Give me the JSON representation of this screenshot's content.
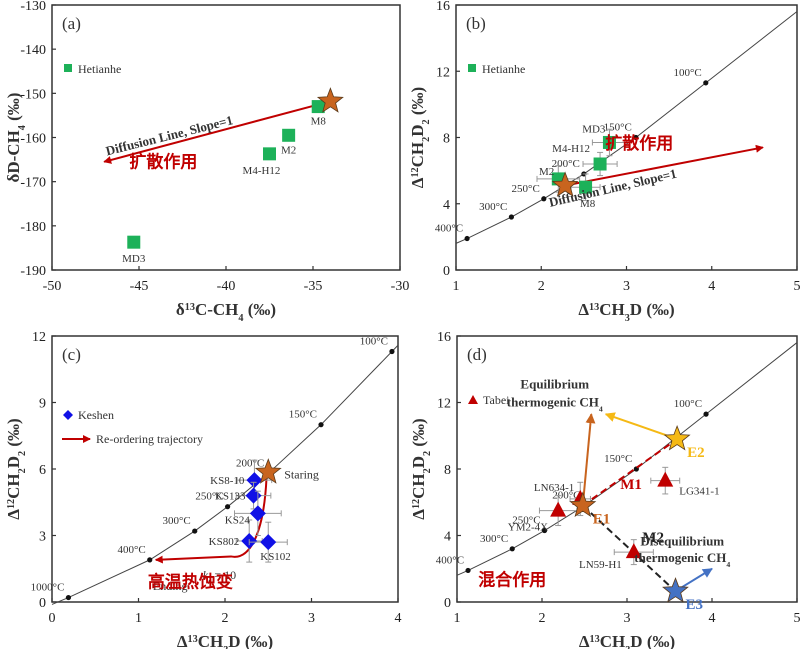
{
  "colors": {
    "hetianhe": "#1db159",
    "keshen": "#1010e6",
    "tabei": "#c00000",
    "star_orange": "#c8641e",
    "star_yellow": "#f5b915",
    "star_blue": "#4472c4",
    "arrow_red": "#c00000",
    "arrow_orange": "#c8641e",
    "arrow_yellow": "#f5b915",
    "arrow_blue": "#4472c4",
    "curve": "#444444",
    "cn_text": "#c00000"
  },
  "chart_data": [
    {
      "id": "a",
      "type": "scatter",
      "panel_label": "(a)",
      "xlabel": "δ13C-CH4 (‰)",
      "ylabel": "δD-CH4 (‰)",
      "xlim": [
        -50,
        -30
      ],
      "ylim": [
        -190,
        -130
      ],
      "xticks": [
        -50,
        -45,
        -40,
        -35,
        -30
      ],
      "yticks": [
        -190,
        -180,
        -170,
        -160,
        -150,
        -140,
        -130
      ],
      "legend": [
        {
          "label": "Hetianhe",
          "marker": "square",
          "color": "hetianhe"
        }
      ],
      "legend_position": "top-left",
      "series": [
        {
          "name": "Hetianhe",
          "marker": "square",
          "points": [
            {
              "label": "M8",
              "x": -34.7,
              "y": -153.0
            },
            {
              "label": "M2",
              "x": -36.4,
              "y": -159.5
            },
            {
              "label": "M4-H12",
              "x": -37.5,
              "y": -163.7
            },
            {
              "label": "MD3",
              "x": -45.3,
              "y": -183.7
            }
          ]
        }
      ],
      "stars": [
        {
          "x": -34.0,
          "y": -151.8,
          "color": "star_orange"
        }
      ],
      "arrows": [
        {
          "from": [
            -34.0,
            -151.8
          ],
          "to": [
            -47.0,
            -165.5
          ],
          "color": "arrow_red"
        }
      ],
      "annotations": [
        {
          "text": "Diffusion Line, Slope=1",
          "x": -43.2,
          "y": -160.5,
          "bold": true,
          "rotate": -14
        },
        {
          "text": "扩散作用",
          "x": -43.6,
          "y": -166.8,
          "cn": true
        }
      ]
    },
    {
      "id": "b",
      "type": "scatter",
      "panel_label": "(b)",
      "xlabel": "Δ13CH3D (‰)",
      "ylabel": "Δ12CH2D2 (‰)",
      "xlim": [
        1,
        5
      ],
      "ylim": [
        0,
        16
      ],
      "xticks": [
        1,
        2,
        3,
        4,
        5
      ],
      "yticks": [
        0,
        4,
        8,
        12,
        16
      ],
      "legend": [
        {
          "label": "Hetianhe",
          "marker": "square",
          "color": "hetianhe"
        }
      ],
      "legend_position": "top-left",
      "equilibrium_curve": [
        {
          "T": "400°C",
          "x": 1.13,
          "y": 1.9
        },
        {
          "T": "300°C",
          "x": 1.65,
          "y": 3.2
        },
        {
          "T": "250°C",
          "x": 2.03,
          "y": 4.3
        },
        {
          "T": "200°C",
          "x": 2.5,
          "y": 5.8
        },
        {
          "T": "150°C",
          "x": 3.11,
          "y": 8.0
        },
        {
          "T": "100°C",
          "x": 3.93,
          "y": 11.3
        }
      ],
      "series": [
        {
          "name": "Hetianhe",
          "marker": "square",
          "points": [
            {
              "label": "M2",
              "x": 2.2,
              "y": 5.5,
              "xerr": 0.25,
              "yerr": 0.8
            },
            {
              "label": "M8",
              "x": 2.52,
              "y": 5.0,
              "xerr": 0.17,
              "yerr": 0.8
            },
            {
              "label": "M4-H12",
              "x": 2.69,
              "y": 6.4,
              "xerr": 0.2,
              "yerr": 0.7
            },
            {
              "label": "MD3",
              "x": 2.8,
              "y": 7.7,
              "xerr": 0.2,
              "yerr": 0.8
            }
          ]
        }
      ],
      "stars": [
        {
          "x": 2.28,
          "y": 5.1,
          "color": "star_orange"
        }
      ],
      "arrows": [
        {
          "from": [
            2.28,
            5.1
          ],
          "to": [
            4.6,
            7.4
          ],
          "color": "arrow_red"
        }
      ],
      "annotations": [
        {
          "text": "扩散作用",
          "x": 3.15,
          "y": 7.3,
          "cn": true
        },
        {
          "text": "Diffusion Line, Slope=1",
          "x": 2.85,
          "y": 4.7,
          "bold": true,
          "rotate": -13
        }
      ]
    },
    {
      "id": "c",
      "type": "scatter",
      "panel_label": "(c)",
      "xlabel": "Δ13CH3D (‰)",
      "ylabel": "Δ12CH2D2 (‰)",
      "xlim": [
        0,
        4
      ],
      "ylim": [
        0,
        12
      ],
      "xticks": [
        0,
        1,
        2,
        3,
        4
      ],
      "yticks": [
        0,
        3,
        6,
        9,
        12
      ],
      "legend": [
        {
          "label": "Keshen",
          "marker": "diamond",
          "color": "keshen"
        },
        {
          "label": "Re-ordering trajectory",
          "marker": "arrow",
          "color": "arrow_red"
        }
      ],
      "legend_position": "top-left",
      "equilibrium_curve": [
        {
          "T": "1000°C",
          "x": 0.19,
          "y": 0.2
        },
        {
          "T": "400°C",
          "x": 1.13,
          "y": 1.9
        },
        {
          "T": "300°C",
          "x": 1.65,
          "y": 3.2
        },
        {
          "T": "250°C",
          "x": 2.03,
          "y": 4.3
        },
        {
          "T": "200°C",
          "x": 2.5,
          "y": 5.8
        },
        {
          "T": "150°C",
          "x": 3.11,
          "y": 8.0
        },
        {
          "T": "100°C",
          "x": 3.93,
          "y": 11.3
        }
      ],
      "series": [
        {
          "name": "Keshen",
          "marker": "diamond",
          "points": [
            {
              "label": "KS8-10",
              "x": 2.34,
              "y": 5.5,
              "xerr": 0.2,
              "yerr": 0.9
            },
            {
              "label": "KS133",
              "x": 2.33,
              "y": 4.8,
              "xerr": 0.2,
              "yerr": 0.6
            },
            {
              "label": "KS24",
              "x": 2.38,
              "y": 4.0,
              "xerr": 0.27,
              "yerr": 1.0
            },
            {
              "label": "KS802",
              "x": 2.28,
              "y": 2.75,
              "xerr": 0.15,
              "yerr": 0.95
            },
            {
              "label": "KS102",
              "x": 2.5,
              "y": 2.7,
              "xerr": 0.22,
              "yerr": 0.9
            }
          ]
        }
      ],
      "stars": [
        {
          "x": 2.5,
          "y": 5.85,
          "color": "star_orange",
          "label": "Staring"
        }
      ],
      "trajectory": {
        "points": [
          [
            2.48,
            5.6
          ],
          [
            2.45,
            3.2
          ],
          [
            2.3,
            2.1
          ],
          [
            2.0,
            1.95
          ],
          [
            1.2,
            1.9
          ]
        ],
        "color": "arrow_red",
        "start_label": "Staring",
        "end_label": "Ending",
        "k_label": "kr = 10"
      },
      "annotations": [
        {
          "text": "高温热蚀变",
          "x": 1.6,
          "y": 0.65,
          "cn": true
        }
      ]
    },
    {
      "id": "d",
      "type": "scatter",
      "panel_label": "(d)",
      "xlabel": "Δ13CH3D (‰)",
      "ylabel": "Δ12CH2D2 (‰)",
      "xlim": [
        1,
        5
      ],
      "ylim": [
        0,
        16
      ],
      "xticks": [
        1,
        2,
        3,
        4,
        5
      ],
      "yticks": [
        0,
        4,
        8,
        12,
        16
      ],
      "legend": [
        {
          "label": "Tabei",
          "marker": "triangle",
          "color": "tabei"
        }
      ],
      "legend_position": "top-left",
      "equilibrium_curve": [
        {
          "T": "400°C",
          "x": 1.13,
          "y": 1.9
        },
        {
          "T": "300°C",
          "x": 1.65,
          "y": 3.2
        },
        {
          "T": "250°C",
          "x": 2.03,
          "y": 4.3
        },
        {
          "T": "200°C",
          "x": 2.5,
          "y": 5.8
        },
        {
          "T": "150°C",
          "x": 3.11,
          "y": 8.0
        },
        {
          "T": "100°C",
          "x": 3.93,
          "y": 11.3
        }
      ],
      "series": [
        {
          "name": "Tabei",
          "marker": "triangle",
          "points": [
            {
              "label": "LN634-1",
              "x": 2.45,
              "y": 6.2,
              "xerr": 0.12,
              "yerr": 1.0
            },
            {
              "label": "YM2-4X",
              "x": 2.19,
              "y": 5.5,
              "xerr": 0.22,
              "yerr": 0.9
            },
            {
              "label": "LG341-1",
              "x": 3.45,
              "y": 7.3,
              "xerr": 0.17,
              "yerr": 0.8
            },
            {
              "label": "LN59-H1",
              "x": 3.08,
              "y": 3.0,
              "xerr": 0.23,
              "yerr": 0.75
            }
          ]
        }
      ],
      "stars": [
        {
          "label": "E1",
          "x": 2.48,
          "y": 5.8,
          "color": "star_orange"
        },
        {
          "label": "E2",
          "x": 3.59,
          "y": 9.8,
          "color": "star_yellow"
        },
        {
          "label": "E3",
          "x": 3.57,
          "y": 0.65,
          "color": "star_blue"
        }
      ],
      "mix_lines": [
        {
          "label": "M1",
          "from": "E1",
          "to": "E2",
          "color": "arrow_red"
        },
        {
          "label": "M2",
          "from": "E1",
          "to": "E3",
          "color": "#222222"
        }
      ],
      "arrows": [
        {
          "from": [
            2.48,
            5.8
          ],
          "to": [
            2.58,
            11.3
          ],
          "color": "arrow_orange"
        },
        {
          "from": [
            3.59,
            9.8
          ],
          "to": [
            2.75,
            11.3
          ],
          "color": "arrow_yellow"
        },
        {
          "from": [
            3.57,
            0.65
          ],
          "to": [
            4.0,
            2.0
          ],
          "color": "arrow_blue"
        }
      ],
      "annotations": [
        {
          "text": "Equilibrium",
          "x": 2.15,
          "y": 12.85,
          "bold": true
        },
        {
          "text": "thermogenic CH4",
          "x": 2.15,
          "y": 11.75,
          "bold": true
        },
        {
          "text": "Disequilibrium",
          "x": 3.65,
          "y": 3.4,
          "bold": true
        },
        {
          "text": "thermogenic CH4",
          "x": 3.65,
          "y": 2.4,
          "bold": true
        },
        {
          "text": "混合作用",
          "x": 1.65,
          "y": 1.0,
          "cn": true
        }
      ]
    }
  ]
}
